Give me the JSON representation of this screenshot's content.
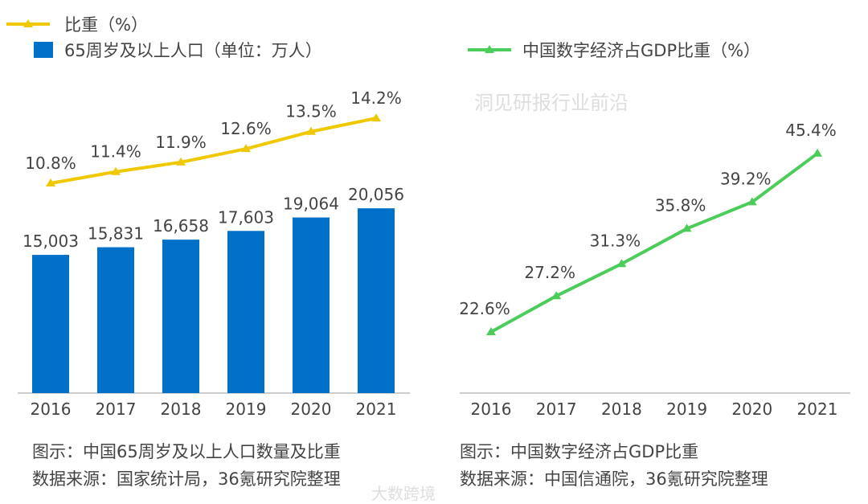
{
  "chart_data": [
    {
      "type": "bar+line",
      "categories": [
        "2016",
        "2017",
        "2018",
        "2019",
        "2020",
        "2021"
      ],
      "series": [
        {
          "name": "65周岁及以上人口（单位：万人）",
          "kind": "bar",
          "color": "#0070c8",
          "values": [
            15003,
            15831,
            16658,
            17603,
            19064,
            20056
          ],
          "labels": [
            "15,003",
            "15,831",
            "16,658",
            "17,603",
            "19,064",
            "20,056"
          ]
        },
        {
          "name": "比重（%）",
          "kind": "line",
          "color": "#f0c800",
          "values": [
            10.8,
            11.4,
            11.9,
            12.6,
            13.5,
            14.2
          ],
          "labels": [
            "10.8%",
            "11.4%",
            "11.9%",
            "12.6%",
            "13.5%",
            "14.2%"
          ]
        }
      ],
      "caption": "图示：中国65周岁及以上人口数量及比重",
      "source": "数据来源：国家统计局，36氪研究院整理",
      "legend": "top-left",
      "grid": false
    },
    {
      "type": "line",
      "categories": [
        "2016",
        "2017",
        "2018",
        "2019",
        "2020",
        "2021"
      ],
      "series": [
        {
          "name": "中国数字经济占GDP比重（%）",
          "kind": "line",
          "color": "#4ccc5a",
          "values": [
            22.6,
            27.2,
            31.3,
            35.8,
            39.2,
            45.4
          ],
          "labels": [
            "22.6%",
            "27.2%",
            "31.3%",
            "35.8%",
            "39.2%",
            "45.4%"
          ]
        }
      ],
      "caption": "图示：中国数字经济占GDP比重",
      "source": "数据来源：中国信通院，36氪研究院整理",
      "legend": "top",
      "grid": false
    }
  ],
  "watermarks": [
    "大数跨境",
    "洞见研报行业前沿"
  ]
}
